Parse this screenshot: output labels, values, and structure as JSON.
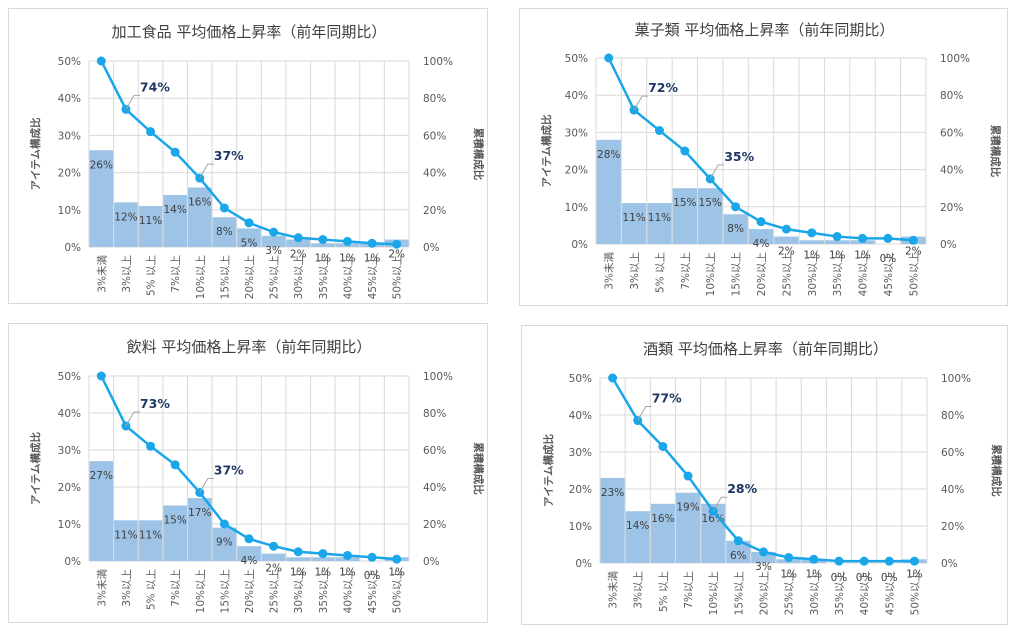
{
  "colors": {
    "bar": "#9dc3e6",
    "line": "#1aa6e8",
    "annotation": "#1f3864",
    "grid": "#d9d9d9"
  },
  "chart_data": [
    {
      "type": "bar",
      "title": "加工食品 平均価格上昇率（前年同期比）",
      "categories": [
        "3%未満",
        "3%以上",
        "5% 以上",
        "7%以上",
        "10%以上",
        "15%以上",
        "20%以上",
        "25%以上",
        "30%以上",
        "35%以上",
        "40%以上",
        "45%以上",
        "50%以上"
      ],
      "series": [
        {
          "axis": "left",
          "values": [
            26,
            12,
            11,
            14,
            16,
            8,
            5,
            3,
            2,
            1,
            1,
            1,
            2
          ]
        },
        {
          "axis": "right",
          "values": [
            100,
            74,
            62,
            51,
            37,
            21,
            13,
            8,
            5,
            4,
            3,
            2,
            1.5
          ]
        }
      ],
      "bar_labels": [
        "26%",
        "12%",
        "11%",
        "14%",
        "16%",
        "8%",
        "5%",
        "3%",
        "2%",
        "1%",
        "1%",
        "1%",
        "2%"
      ],
      "annotations": [
        {
          "index": 1,
          "text": "74%"
        },
        {
          "index": 4,
          "text": "37%"
        }
      ],
      "ylabel": "アイテム構成比",
      "y2label": "累積構成比",
      "ylim": [
        0,
        50
      ],
      "y2lim": [
        0,
        100
      ],
      "yticks": [
        "0%",
        "10%",
        "20%",
        "30%",
        "40%",
        "50%"
      ],
      "y2ticks": [
        "0%",
        "20%",
        "40%",
        "60%",
        "80%",
        "100%"
      ],
      "grid": true,
      "legend": "none"
    },
    {
      "type": "bar",
      "title": "菓子類 平均価格上昇率（前年同期比）",
      "categories": [
        "3%未満",
        "3%以上",
        "5% 以上",
        "7%以上",
        "10%以上",
        "15%以上",
        "20%以上",
        "25%以上",
        "30%以上",
        "35%以上",
        "40%以上",
        "45%以上",
        "50%以上"
      ],
      "series": [
        {
          "axis": "left",
          "values": [
            28,
            11,
            11,
            15,
            15,
            8,
            4,
            2,
            1,
            1,
            1,
            0,
            2
          ]
        },
        {
          "axis": "right",
          "values": [
            100,
            72,
            61,
            50,
            35,
            20,
            12,
            8,
            6,
            4,
            3,
            3,
            2
          ]
        }
      ],
      "bar_labels": [
        "28%",
        "11%",
        "11%",
        "15%",
        "15%",
        "8%",
        "4%",
        "2%",
        "1%",
        "1%",
        "1%",
        "0%",
        "2%"
      ],
      "annotations": [
        {
          "index": 1,
          "text": "72%"
        },
        {
          "index": 4,
          "text": "35%"
        }
      ],
      "ylabel": "アイテム構成比",
      "y2label": "累積構成比",
      "ylim": [
        0,
        50
      ],
      "y2lim": [
        0,
        100
      ],
      "yticks": [
        "0%",
        "10%",
        "20%",
        "30%",
        "40%",
        "50%"
      ],
      "y2ticks": [
        "0%",
        "20%",
        "40%",
        "60%",
        "80%",
        "100%"
      ],
      "grid": true,
      "legend": "none"
    },
    {
      "type": "bar",
      "title": "飲料 平均価格上昇率（前年同期比）",
      "categories": [
        "3%未満",
        "3%以上",
        "5% 以上",
        "7%以上",
        "10%以上",
        "15%以上",
        "20%以上",
        "25%以上",
        "30%以上",
        "35%以上",
        "40%以上",
        "45%以上",
        "50%以上"
      ],
      "series": [
        {
          "axis": "left",
          "values": [
            27,
            11,
            11,
            15,
            17,
            9,
            4,
            2,
            1,
            1,
            1,
            0,
            1
          ]
        },
        {
          "axis": "right",
          "values": [
            100,
            73,
            62,
            52,
            37,
            20,
            12,
            8,
            5,
            4,
            3,
            2,
            1
          ]
        }
      ],
      "bar_labels": [
        "27%",
        "11%",
        "11%",
        "15%",
        "17%",
        "9%",
        "4%",
        "2%",
        "1%",
        "1%",
        "1%",
        "0%",
        "1%"
      ],
      "annotations": [
        {
          "index": 1,
          "text": "73%"
        },
        {
          "index": 4,
          "text": "37%"
        }
      ],
      "ylabel": "アイテム構成比",
      "y2label": "累積構成比",
      "ylim": [
        0,
        50
      ],
      "y2lim": [
        0,
        100
      ],
      "yticks": [
        "0%",
        "10%",
        "20%",
        "30%",
        "40%",
        "50%"
      ],
      "y2ticks": [
        "0%",
        "20%",
        "40%",
        "60%",
        "80%",
        "100%"
      ],
      "grid": true,
      "legend": "none"
    },
    {
      "type": "bar",
      "title": "酒類 平均価格上昇率（前年同期比）",
      "categories": [
        "3%未満",
        "3%以上",
        "5% 以上",
        "7%以上",
        "10%以上",
        "15%以上",
        "20%以上",
        "25%以上",
        "30%以上",
        "35%以上",
        "40%以上",
        "45%以上",
        "50%以上"
      ],
      "series": [
        {
          "axis": "left",
          "values": [
            23,
            14,
            16,
            19,
            16,
            6,
            3,
            1,
            1,
            0,
            0,
            0,
            1
          ]
        },
        {
          "axis": "right",
          "values": [
            100,
            77,
            63,
            47,
            28,
            12,
            6,
            3,
            2,
            1,
            1,
            1,
            1
          ]
        }
      ],
      "bar_labels": [
        "23%",
        "14%",
        "16%",
        "19%",
        "16%",
        "6%",
        "3%",
        "1%",
        "1%",
        "0%",
        "0%",
        "0%",
        "1%"
      ],
      "annotations": [
        {
          "index": 1,
          "text": "77%"
        },
        {
          "index": 4,
          "text": "28%"
        }
      ],
      "ylabel": "アイテム構成比",
      "y2label": "累積構成比",
      "ylim": [
        0,
        50
      ],
      "y2lim": [
        0,
        100
      ],
      "yticks": [
        "0%",
        "10%",
        "20%",
        "30%",
        "40%",
        "50%"
      ],
      "y2ticks": [
        "0%",
        "20%",
        "40%",
        "60%",
        "80%",
        "100%"
      ],
      "grid": true,
      "legend": "none"
    }
  ]
}
